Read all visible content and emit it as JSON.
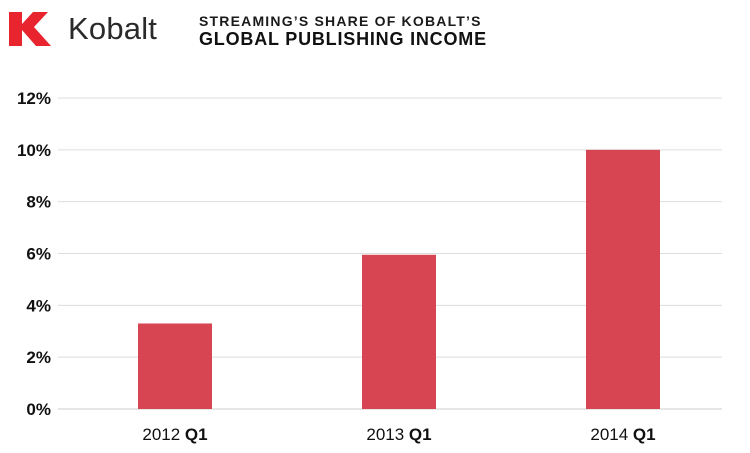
{
  "brand": {
    "name": "Kobalt",
    "logo_letter": "K",
    "logo_color": "#e8252f"
  },
  "title": {
    "line1": "STREAMING’S SHARE OF KOBALT’S",
    "line2": "GLOBAL PUBLISHING INCOME"
  },
  "chart_data": {
    "type": "bar",
    "title": "STREAMING’S SHARE OF KOBALT’S GLOBAL PUBLISHING INCOME",
    "categories": [
      {
        "year": "2012",
        "quarter": "Q1"
      },
      {
        "year": "2013",
        "quarter": "Q1"
      },
      {
        "year": "2014",
        "quarter": "Q1"
      }
    ],
    "values": [
      3.3,
      5.95,
      10.0
    ],
    "unit": "%",
    "xlabel": "",
    "ylabel": "",
    "ylim": [
      0,
      12
    ],
    "yticks": [
      "0%",
      "2%",
      "4%",
      "6%",
      "8%",
      "10%",
      "12%"
    ],
    "ytick_values": [
      0,
      2,
      4,
      6,
      8,
      10,
      12
    ],
    "grid": true,
    "legend": "none",
    "bar_color": "#d64551",
    "grid_color": "#dddddd"
  }
}
